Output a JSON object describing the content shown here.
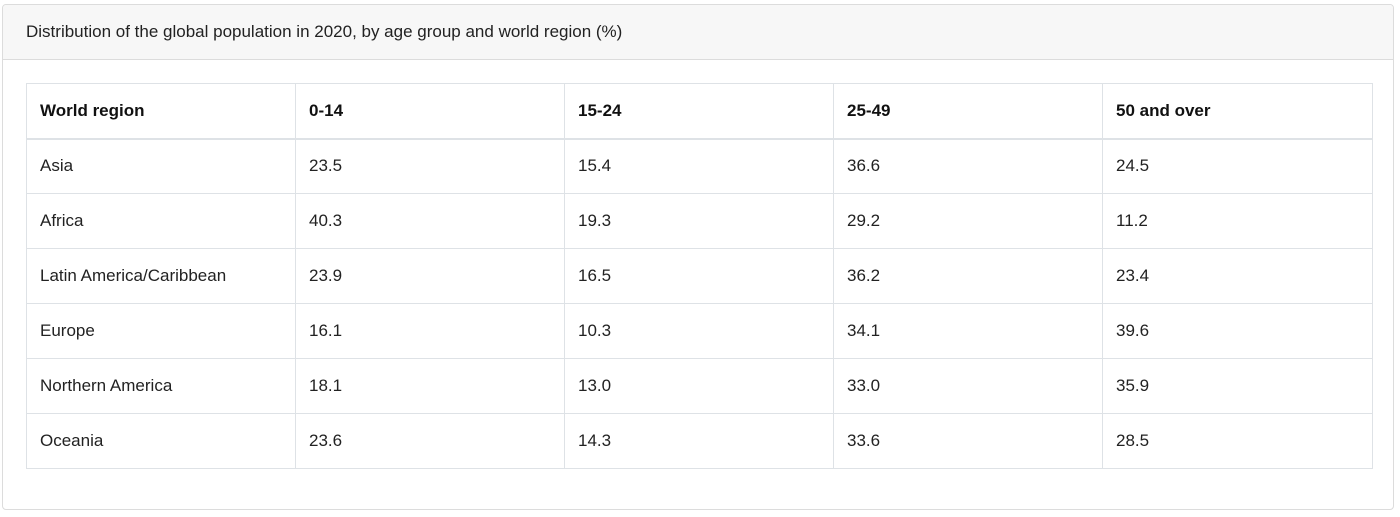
{
  "card": {
    "title": "Distribution of the global population in 2020, by age group and world region (%)"
  },
  "chart_data": {
    "type": "table",
    "title": "Distribution of the global population in 2020, by age group and world region (%)",
    "columns": [
      "World region",
      "0-14",
      "15-24",
      "25-49",
      "50 and over"
    ],
    "rows": [
      {
        "region": "Asia",
        "values": [
          "23.5",
          "15.4",
          "36.6",
          "24.5"
        ]
      },
      {
        "region": "Africa",
        "values": [
          "40.3",
          "19.3",
          "29.2",
          "11.2"
        ]
      },
      {
        "region": "Latin America/Caribbean",
        "values": [
          "23.9",
          "16.5",
          "36.2",
          "23.4"
        ]
      },
      {
        "region": "Europe",
        "values": [
          "16.1",
          "10.3",
          "34.1",
          "39.6"
        ]
      },
      {
        "region": "Northern America",
        "values": [
          "18.1",
          "13.0",
          "33.0",
          "35.9"
        ]
      },
      {
        "region": "Oceania",
        "values": [
          "23.6",
          "14.3",
          "33.6",
          "28.5"
        ]
      }
    ]
  }
}
